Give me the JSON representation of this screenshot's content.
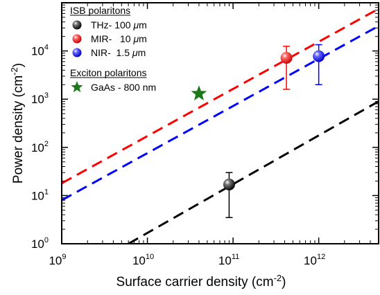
{
  "chart_data": {
    "type": "scatter",
    "x_scale": "log",
    "y_scale": "log",
    "xlim": [
      1000000000.0,
      5000000000000.0
    ],
    "ylim": [
      1,
      100000.0
    ],
    "x_ticks": [
      {
        "value": 1000000000.0,
        "base": "10",
        "exp": "9"
      },
      {
        "value": 10000000000.0,
        "base": "10",
        "exp": "10"
      },
      {
        "value": 100000000000.0,
        "base": "10",
        "exp": "11"
      },
      {
        "value": 1000000000000.0,
        "base": "10",
        "exp": "12"
      }
    ],
    "y_ticks": [
      {
        "value": 1,
        "base": "10",
        "exp": "0"
      },
      {
        "value": 10,
        "base": "10",
        "exp": "1"
      },
      {
        "value": 100,
        "base": "10",
        "exp": "2"
      },
      {
        "value": 1000,
        "base": "10",
        "exp": "3"
      },
      {
        "value": 10000,
        "base": "10",
        "exp": "4"
      }
    ],
    "xlabel": {
      "text": "Surface carrier density (cm",
      "sup": "-2",
      "close": ")"
    },
    "ylabel": {
      "text": "Power density (cm",
      "sup": "-2",
      "close": ")"
    },
    "grid": false,
    "legend_placement": "top-left",
    "legend_groups": [
      {
        "title": "ISB polaritons",
        "entries": [
          0,
          1,
          2
        ]
      },
      {
        "title": "Exciton polaritons",
        "entries": [
          3
        ]
      }
    ],
    "series": [
      {
        "label_pre": "THz- 100 ",
        "label_unit": "μ",
        "label_post": "m",
        "color": "#000000",
        "marker": "sphere",
        "point": {
          "x": 90000000000.0,
          "y": 17,
          "y_low": 3.5,
          "y_high": 30
        },
        "fit_line": {
          "x": [
            6000000000.0,
            5000000000000.0
          ],
          "y": [
            1,
            900
          ]
        }
      },
      {
        "label_pre": "MIR-   10 ",
        "label_unit": "μ",
        "label_post": "m",
        "color": "#ff0000",
        "marker": "sphere",
        "point": {
          "x": 420000000000.0,
          "y": 7200,
          "y_low": 1600,
          "y_high": 12500
        },
        "fit_line": {
          "x": [
            1000000000.0,
            5000000000000.0
          ],
          "y": [
            18,
            75000
          ]
        }
      },
      {
        "label_pre": "NIR-  1.5 ",
        "label_unit": "μ",
        "label_post": "m",
        "color": "#0000ff",
        "marker": "sphere",
        "point": {
          "x": 1000000000000.0,
          "y": 7800,
          "y_low": 2000,
          "y_high": 13500
        },
        "fit_line": {
          "x": [
            1000000000.0,
            5000000000000.0
          ],
          "y": [
            8,
            33000
          ]
        }
      },
      {
        "label_pre": "GaAs - 800 nm",
        "label_unit": "",
        "label_post": "",
        "color": "#1a7a1a",
        "marker": "star",
        "point": {
          "x": 40000000000.0,
          "y": 1300
        }
      }
    ]
  }
}
